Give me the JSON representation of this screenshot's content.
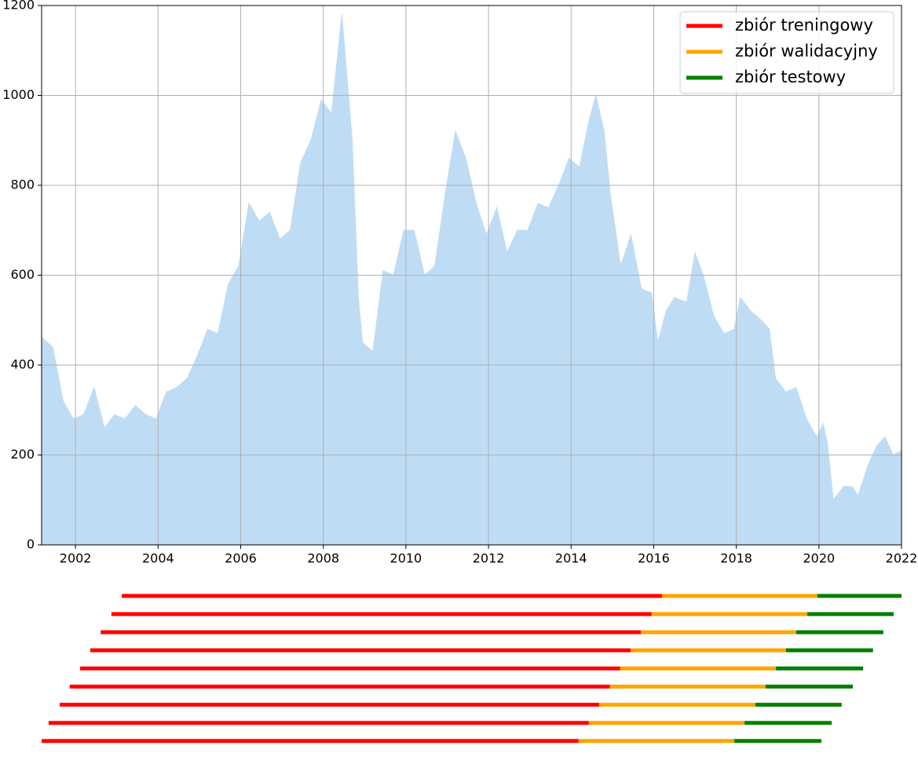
{
  "chart_data": [
    {
      "type": "area",
      "color": "#bfdcf5",
      "x": [
        2001.2,
        2001.45,
        2001.7,
        2001.95,
        2002.2,
        2002.45,
        2002.7,
        2002.95,
        2003.2,
        2003.45,
        2003.7,
        2003.95,
        2004.2,
        2004.45,
        2004.7,
        2004.95,
        2005.2,
        2005.45,
        2005.7,
        2005.95,
        2006.2,
        2006.45,
        2006.7,
        2006.95,
        2007.2,
        2007.45,
        2007.7,
        2007.95,
        2008.2,
        2008.45,
        2008.7,
        2008.85,
        2008.95,
        2009.2,
        2009.45,
        2009.7,
        2009.95,
        2010.2,
        2010.45,
        2010.7,
        2010.95,
        2011.2,
        2011.45,
        2011.7,
        2011.95,
        2012.2,
        2012.45,
        2012.7,
        2012.95,
        2013.2,
        2013.45,
        2013.7,
        2013.95,
        2014.2,
        2014.45,
        2014.6,
        2014.8,
        2014.95,
        2015.2,
        2015.45,
        2015.7,
        2015.95,
        2016.1,
        2016.3,
        2016.5,
        2016.8,
        2017.0,
        2017.2,
        2017.45,
        2017.7,
        2017.95,
        2018.1,
        2018.35,
        2018.6,
        2018.8,
        2018.95,
        2019.2,
        2019.45,
        2019.7,
        2019.95,
        2020.1,
        2020.2,
        2020.35,
        2020.6,
        2020.8,
        2020.95,
        2021.2,
        2021.4,
        2021.6,
        2021.8,
        2022.0
      ],
      "values": [
        460,
        440,
        320,
        280,
        290,
        350,
        260,
        290,
        280,
        310,
        290,
        280,
        340,
        350,
        370,
        420,
        480,
        470,
        580,
        620,
        760,
        720,
        740,
        680,
        700,
        850,
        900,
        990,
        960,
        1180,
        900,
        550,
        450,
        430,
        610,
        600,
        700,
        700,
        600,
        620,
        780,
        920,
        860,
        760,
        690,
        750,
        650,
        700,
        700,
        760,
        750,
        800,
        860,
        840,
        950,
        1000,
        920,
        780,
        620,
        690,
        570,
        560,
        450,
        520,
        550,
        540,
        650,
        600,
        510,
        470,
        480,
        550,
        520,
        500,
        480,
        370,
        340,
        350,
        280,
        240,
        270,
        230,
        100,
        130,
        130,
        110,
        180,
        220,
        240,
        200,
        210
      ],
      "xlim": [
        2001.18,
        2022
      ],
      "ylim": [
        0,
        1200
      ],
      "xticks": [
        2002,
        2004,
        2006,
        2008,
        2010,
        2012,
        2014,
        2016,
        2018,
        2020,
        2022
      ],
      "yticks": [
        0,
        200,
        400,
        600,
        800,
        1000,
        1200
      ],
      "grid": true
    },
    {
      "type": "segments",
      "legend": "upper right",
      "series": [
        {
          "name": "zbiór treningowy",
          "color": "red"
        },
        {
          "name": "zbiór walidacyjny",
          "color": "orange"
        },
        {
          "name": "zbiór testowy",
          "color": "green"
        }
      ],
      "rows": [
        [
          2003.12,
          2016.2,
          2019.96,
          2022.0
        ],
        [
          2002.87,
          2015.95,
          2019.72,
          2021.81
        ],
        [
          2002.61,
          2015.69,
          2019.45,
          2021.56
        ],
        [
          2002.36,
          2015.44,
          2019.2,
          2021.31
        ],
        [
          2002.11,
          2015.19,
          2018.96,
          2021.07
        ],
        [
          2001.86,
          2014.94,
          2018.71,
          2020.82
        ],
        [
          2001.62,
          2014.68,
          2018.46,
          2020.55
        ],
        [
          2001.35,
          2014.43,
          2018.2,
          2020.31
        ],
        [
          2001.18,
          2014.18,
          2017.95,
          2020.06
        ]
      ]
    }
  ]
}
